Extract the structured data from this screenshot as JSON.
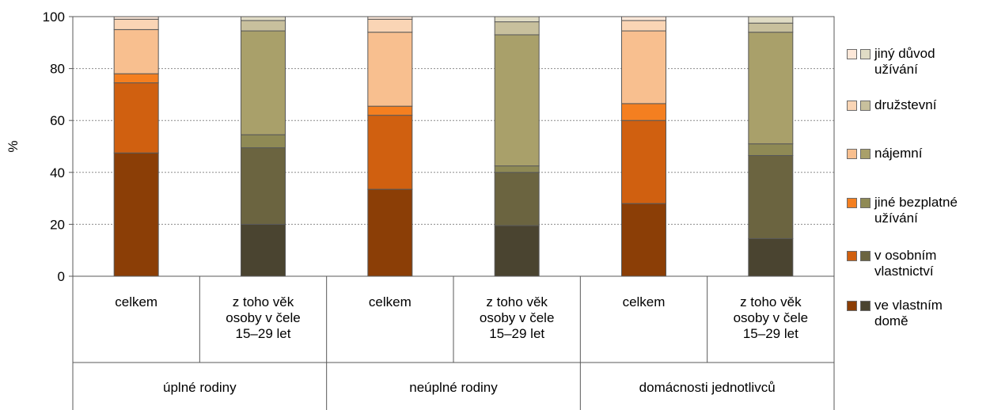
{
  "chart_data": {
    "type": "bar",
    "stacked": true,
    "ylabel": "%",
    "ylim": [
      0,
      100
    ],
    "yticks": [
      0,
      20,
      40,
      60,
      80,
      100
    ],
    "grid": true,
    "legend_position": "right",
    "groups": [
      "úplné rodiny",
      "neúplné rodiny",
      "domácnosti jednotlivců"
    ],
    "categories": [
      {
        "label": "celkem",
        "group": 0,
        "palette": "orange"
      },
      {
        "label": "z toho věk osoby v čele 15–29 let",
        "group": 0,
        "palette": "olive"
      },
      {
        "label": "celkem",
        "group": 1,
        "palette": "orange"
      },
      {
        "label": "z toho věk osoby v čele 15–29 let",
        "group": 1,
        "palette": "olive"
      },
      {
        "label": "celkem",
        "group": 2,
        "palette": "orange"
      },
      {
        "label": "z toho věk osoby v čele 15–29 let",
        "group": 2,
        "palette": "olive"
      }
    ],
    "series": [
      {
        "name": "ve vlastním domě",
        "values": [
          47.5,
          20,
          33.5,
          19.5,
          28,
          14.5
        ]
      },
      {
        "name": "v osobním vlastnictví",
        "values": [
          27,
          29.5,
          28.5,
          20.5,
          32,
          32
        ]
      },
      {
        "name": "jiné bezplatné užívání",
        "values": [
          3.5,
          5,
          3.5,
          2.5,
          6.5,
          4.5
        ]
      },
      {
        "name": "nájemní",
        "values": [
          17,
          40,
          28.5,
          50.5,
          28,
          43
        ]
      },
      {
        "name": "družstevní",
        "values": [
          4,
          4,
          5,
          5,
          4,
          3.5
        ]
      },
      {
        "name": "jiný důvod užívání",
        "values": [
          1,
          1.5,
          1,
          2,
          1.5,
          2.5
        ]
      }
    ]
  },
  "colors": {
    "orange": [
      "#8b3e06",
      "#d06010",
      "#f47f20",
      "#f8bf8f",
      "#fad5b5",
      "#fde8d9"
    ],
    "olive": [
      "#4a4430",
      "#6b6440",
      "#8f8a55",
      "#a9a06a",
      "#c8c09d",
      "#e0dcc5"
    ],
    "bar_border": "#595959",
    "grid": "#8c8c8c",
    "axis": "#595959"
  },
  "legend": [
    {
      "label": "jiný důvod\nužívání",
      "series_index": 5
    },
    {
      "label": "družstevní",
      "series_index": 4
    },
    {
      "label": "nájemní",
      "series_index": 3
    },
    {
      "label": "jiné bezplatné\nužívání",
      "series_index": 2
    },
    {
      "label": "v osobním\nvlastnictví",
      "series_index": 1
    },
    {
      "label": "ve vlastním\ndomě",
      "series_index": 0
    }
  ]
}
